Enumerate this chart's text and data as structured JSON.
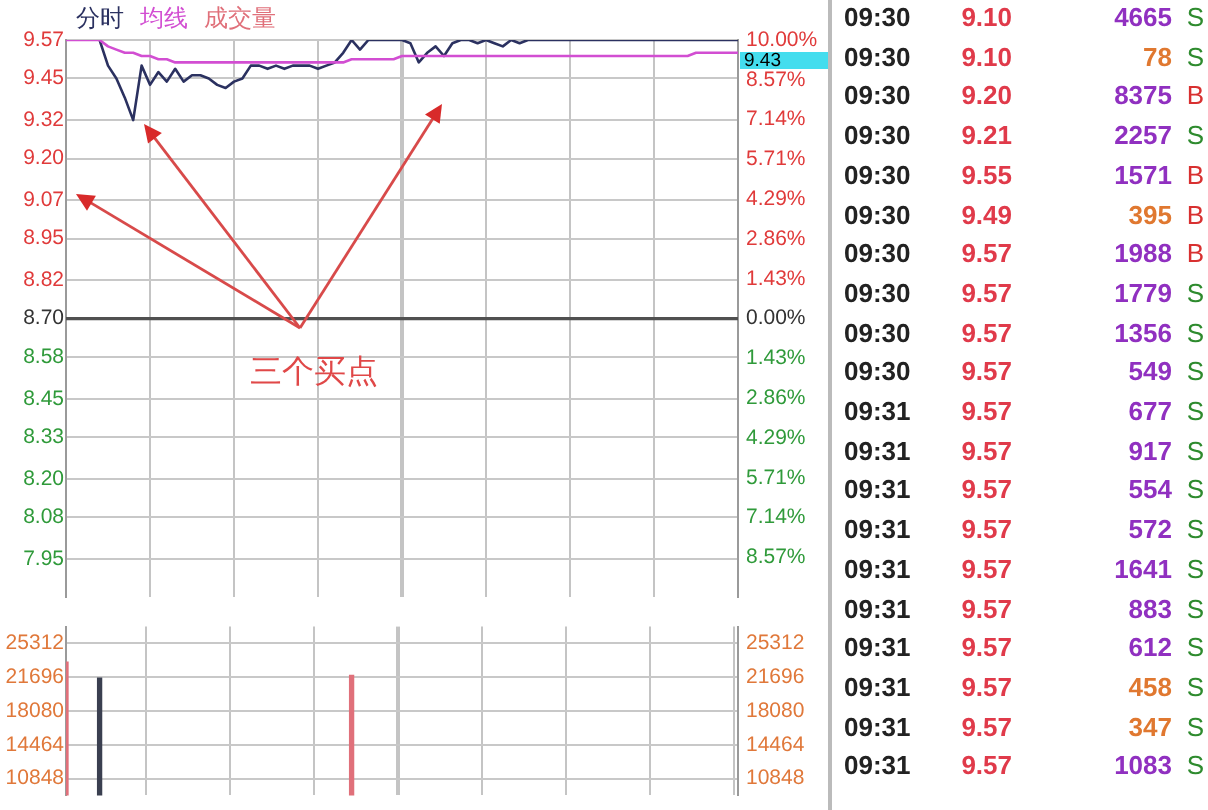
{
  "chart_data": [
    {
      "type": "line",
      "legend": "top left",
      "grid": true,
      "categories": [
        null,
        null,
        null,
        null,
        null,
        null,
        null,
        null,
        null,
        null,
        null,
        null,
        null,
        null,
        null,
        null,
        null,
        null,
        null,
        null,
        null,
        null,
        null,
        null,
        null,
        null,
        null,
        null,
        null,
        null,
        null,
        null,
        null,
        null,
        null,
        null,
        null,
        null,
        null,
        null,
        null,
        null,
        null,
        null,
        null,
        null,
        null,
        null,
        null,
        null,
        null,
        null,
        null,
        null,
        null,
        null,
        null,
        null,
        null,
        null,
        null,
        null,
        null,
        null,
        null,
        null,
        null,
        null,
        null,
        null,
        null,
        null,
        null,
        null,
        null,
        null,
        null,
        null,
        null,
        null,
        null
      ],
      "series": [
        {
          "name": "分时",
          "color": "#2b3160",
          "values": [
            null,
            null,
            null,
            null,
            9.57,
            9.49,
            9.45,
            9.39,
            9.32,
            9.49,
            9.43,
            9.47,
            9.44,
            9.48,
            9.44,
            9.46,
            9.46,
            9.45,
            9.43,
            9.42,
            9.44,
            9.45,
            9.49,
            9.49,
            9.48,
            9.49,
            9.48,
            9.49,
            9.49,
            9.49,
            9.48,
            9.49,
            9.5,
            9.53,
            9.57,
            9.54,
            9.57,
            9.57,
            9.57,
            9.57,
            9.57,
            9.56,
            9.5,
            9.53,
            9.55,
            9.52,
            9.56,
            9.57,
            9.57,
            9.56,
            9.57,
            9.56,
            9.55,
            9.57,
            9.56,
            9.57,
            9.57,
            9.57,
            9.57,
            9.57,
            9.57,
            9.57,
            9.57,
            9.57,
            9.57,
            9.57,
            9.57,
            9.57,
            9.57,
            9.57,
            9.57,
            9.57,
            9.57,
            9.57,
            9.57,
            9.57,
            9.57,
            9.57,
            9.57,
            9.57,
            9.57
          ]
        },
        {
          "name": "均线",
          "color": "#d24ed2",
          "values": [
            9.57,
            9.57,
            9.57,
            9.57,
            9.57,
            9.55,
            9.54,
            9.53,
            9.53,
            9.52,
            9.52,
            9.51,
            9.51,
            9.5,
            9.5,
            9.5,
            9.5,
            9.5,
            9.5,
            9.5,
            9.5,
            9.5,
            9.5,
            9.5,
            9.5,
            9.5,
            9.5,
            9.5,
            9.5,
            9.5,
            9.5,
            9.5,
            9.5,
            9.5,
            9.51,
            9.51,
            9.51,
            9.51,
            9.51,
            9.51,
            9.52,
            9.52,
            9.52,
            9.52,
            9.52,
            9.52,
            9.52,
            9.52,
            9.52,
            9.52,
            9.52,
            9.52,
            9.52,
            9.52,
            9.52,
            9.52,
            9.52,
            9.52,
            9.52,
            9.52,
            9.52,
            9.52,
            9.52,
            9.52,
            9.52,
            9.52,
            9.52,
            9.52,
            9.52,
            9.52,
            9.52,
            9.52,
            9.52,
            9.52,
            9.52,
            9.53,
            9.53,
            9.53,
            9.53,
            9.53,
            9.53
          ]
        }
      ],
      "ylim": [
        7.83,
        9.57
      ],
      "yticks": [
        9.57,
        9.45,
        9.32,
        {
          "value": 9.2,
          "label": "9.20"
        },
        9.07,
        8.95,
        8.82,
        {
          "value": 8.7,
          "label": "8.70"
        },
        8.58,
        8.45,
        8.33,
        {
          "value": 8.2,
          "label": "8.20"
        },
        8.08,
        7.95
      ],
      "y2lim": [
        -10,
        10
      ],
      "y2ticks": [
        {
          "value": 10,
          "label": "10.00%"
        },
        {
          "value": 8.57,
          "label": "8.57%"
        },
        {
          "value": 7.14,
          "label": "7.14%"
        },
        {
          "value": 5.71,
          "label": "5.71%"
        },
        {
          "value": 4.29,
          "label": "4.29%"
        },
        {
          "value": 2.86,
          "label": "2.86%"
        },
        {
          "value": 1.43,
          "label": "1.43%"
        },
        {
          "value": 0,
          "label": "0.00%"
        },
        {
          "value": -1.43,
          "label": "1.43%"
        },
        {
          "value": -2.86,
          "label": "2.86%"
        },
        {
          "value": -4.29,
          "label": "4.29%"
        },
        {
          "value": -5.71,
          "label": "5.71%"
        },
        {
          "value": -7.14,
          "label": "7.14%"
        },
        {
          "value": -8.57,
          "label": "8.57%"
        }
      ],
      "ref_lines": [
        {
          "axis": "y",
          "value": 8.7,
          "color": "#505050"
        }
      ],
      "annotations": [
        "9.43",
        "三个买点"
      ]
    },
    {
      "type": "bar",
      "grid": true,
      "categories": [
        null,
        null,
        null,
        null,
        null,
        null,
        null,
        null,
        null,
        null,
        null,
        null,
        null,
        null,
        null,
        null,
        null,
        null,
        null,
        null,
        null,
        null,
        null,
        null,
        null,
        null,
        null,
        null,
        null,
        null,
        null,
        null,
        null,
        null,
        null,
        null,
        null,
        null,
        null,
        null,
        null,
        null,
        null,
        null,
        null,
        null,
        null,
        null,
        null,
        null,
        null,
        null,
        null,
        null,
        null,
        null,
        null,
        null,
        null,
        null,
        null,
        null,
        null,
        null,
        null,
        null,
        null,
        null,
        null,
        null,
        null,
        null,
        null,
        null,
        null,
        null,
        null,
        null,
        null,
        null,
        null
      ],
      "series": [
        {
          "name": "成交量",
          "colors": [
            "#e0707a",
            null,
            null,
            null,
            "#3a3f50",
            null,
            null,
            null,
            null,
            null,
            null,
            null,
            null,
            null,
            null,
            null,
            null,
            null,
            null,
            null,
            null,
            null,
            null,
            null,
            null,
            null,
            null,
            null,
            null,
            null,
            null,
            null,
            null,
            null,
            "#e0707a",
            null,
            null,
            null,
            null,
            null,
            null,
            null,
            null,
            null,
            null,
            null,
            null,
            null,
            null,
            null,
            null,
            null,
            null,
            null,
            null,
            null,
            null,
            null,
            null,
            null,
            null,
            null,
            null,
            null,
            null,
            null,
            null,
            null,
            null,
            null,
            null,
            null,
            null,
            null,
            null,
            null,
            null,
            null,
            null,
            null,
            null
          ],
          "values": [
            23300,
            null,
            null,
            null,
            21600,
            null,
            null,
            null,
            null,
            null,
            null,
            null,
            null,
            null,
            null,
            null,
            null,
            null,
            null,
            null,
            null,
            null,
            null,
            null,
            null,
            null,
            null,
            null,
            null,
            null,
            null,
            null,
            null,
            null,
            21900,
            null,
            null,
            null,
            null,
            null,
            null,
            null,
            null,
            null,
            null,
            null,
            null,
            null,
            null,
            null,
            null,
            null,
            null,
            null,
            null,
            null,
            null,
            null,
            null,
            null,
            null,
            null,
            null,
            null,
            null,
            null,
            null,
            null,
            null,
            null,
            null,
            null,
            null,
            null,
            null,
            null,
            null,
            null,
            null,
            null,
            null
          ]
        }
      ],
      "ylim": [
        9040,
        27120
      ],
      "yticks": [
        25312,
        21696,
        18080,
        14464,
        10848
      ],
      "y2lim": [
        9040,
        27120
      ],
      "y2ticks": [
        25312,
        21696,
        18080,
        14464,
        10848
      ]
    },
    {
      "type": "other",
      "annotations": [
        "09:30 9.10 4665 S",
        "09:30 9.10 78 S",
        "09:30 9.20 8375 B",
        "09:30 9.21 2257 S",
        "09:30 9.55 1571 B",
        "09:30 9.49 395 B",
        "09:30 9.57 1988 B",
        "09:30 9.57 1779 S",
        "09:30 9.57 1356 S",
        "09:30 9.57 549 S",
        "09:31 9.57 677 S",
        "09:31 9.57 917 S",
        "09:31 9.57 554 S",
        "09:31 9.57 572 S",
        "09:31 9.57 1641 S",
        "09:31 9.57 883 S",
        "09:31 9.57 612 S",
        "09:31 9.57 458 S",
        "09:31 9.57 347 S",
        "09:31 9.57 1083 S"
      ],
      "colors": [
        "#2e8b2e",
        "#2e8b2e",
        "#d83030",
        "#2e8b2e",
        "#d83030",
        "#d83030",
        "#d83030",
        "#2e8b2e",
        "#2e8b2e",
        "#2e8b2e",
        "#2e8b2e",
        "#2e8b2e",
        "#2e8b2e",
        "#2e8b2e",
        "#2e8b2e",
        "#2e8b2e",
        "#2e8b2e",
        "#2e8b2e",
        "#2e8b2e",
        "#2e8b2e"
      ]
    }
  ]
}
